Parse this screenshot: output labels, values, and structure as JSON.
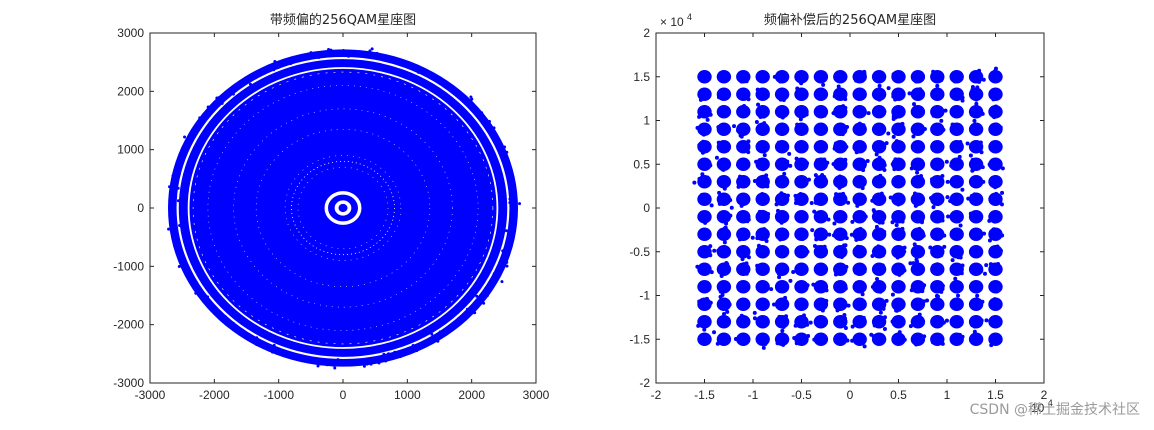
{
  "chart_data": [
    {
      "type": "scatter",
      "title": "带频偏的256QAM星座图",
      "xlim": [
        -3000,
        3000
      ],
      "ylim": [
        -3000,
        3000
      ],
      "xticks": [
        "-3000",
        "-2000",
        "-1000",
        "0",
        "1000",
        "2000",
        "3000"
      ],
      "yticks": [
        "3000",
        "2000",
        "1000",
        "0",
        "-1000",
        "-2000",
        "-3000"
      ],
      "marker_color": "#0000ff",
      "description_values": {
        "outer_ring_radii": [
          2700,
          2480,
          2300
        ],
        "inner_ring_radius": 250,
        "center_point": [
          0,
          0
        ]
      },
      "grid": false
    },
    {
      "type": "scatter",
      "title": "频偏补偿后的256QAM星座图",
      "xlim": [
        -2,
        2
      ],
      "ylim": [
        -2,
        2
      ],
      "x_exponent": "10",
      "y_exponent": "× 10",
      "exponent_power": "4",
      "xticks": [
        "-2",
        "-1.5",
        "-1",
        "-0.5",
        "0",
        "0.5",
        "1",
        "1.5",
        "2"
      ],
      "yticks": [
        "2",
        "1.5",
        "1",
        "0.5",
        "0",
        "-0.5",
        "-1",
        "-1.5",
        "-2"
      ],
      "grid_levels": [
        -1.5,
        -1.3,
        -1.1,
        -0.9,
        -0.7,
        -0.5,
        -0.3,
        -0.1,
        0.1,
        0.3,
        0.5,
        0.7,
        0.9,
        1.1,
        1.3,
        1.5
      ],
      "marker_color": "#0000ff",
      "grid": false
    }
  ],
  "watermark": "CSDN @稀土掘金技术社区"
}
